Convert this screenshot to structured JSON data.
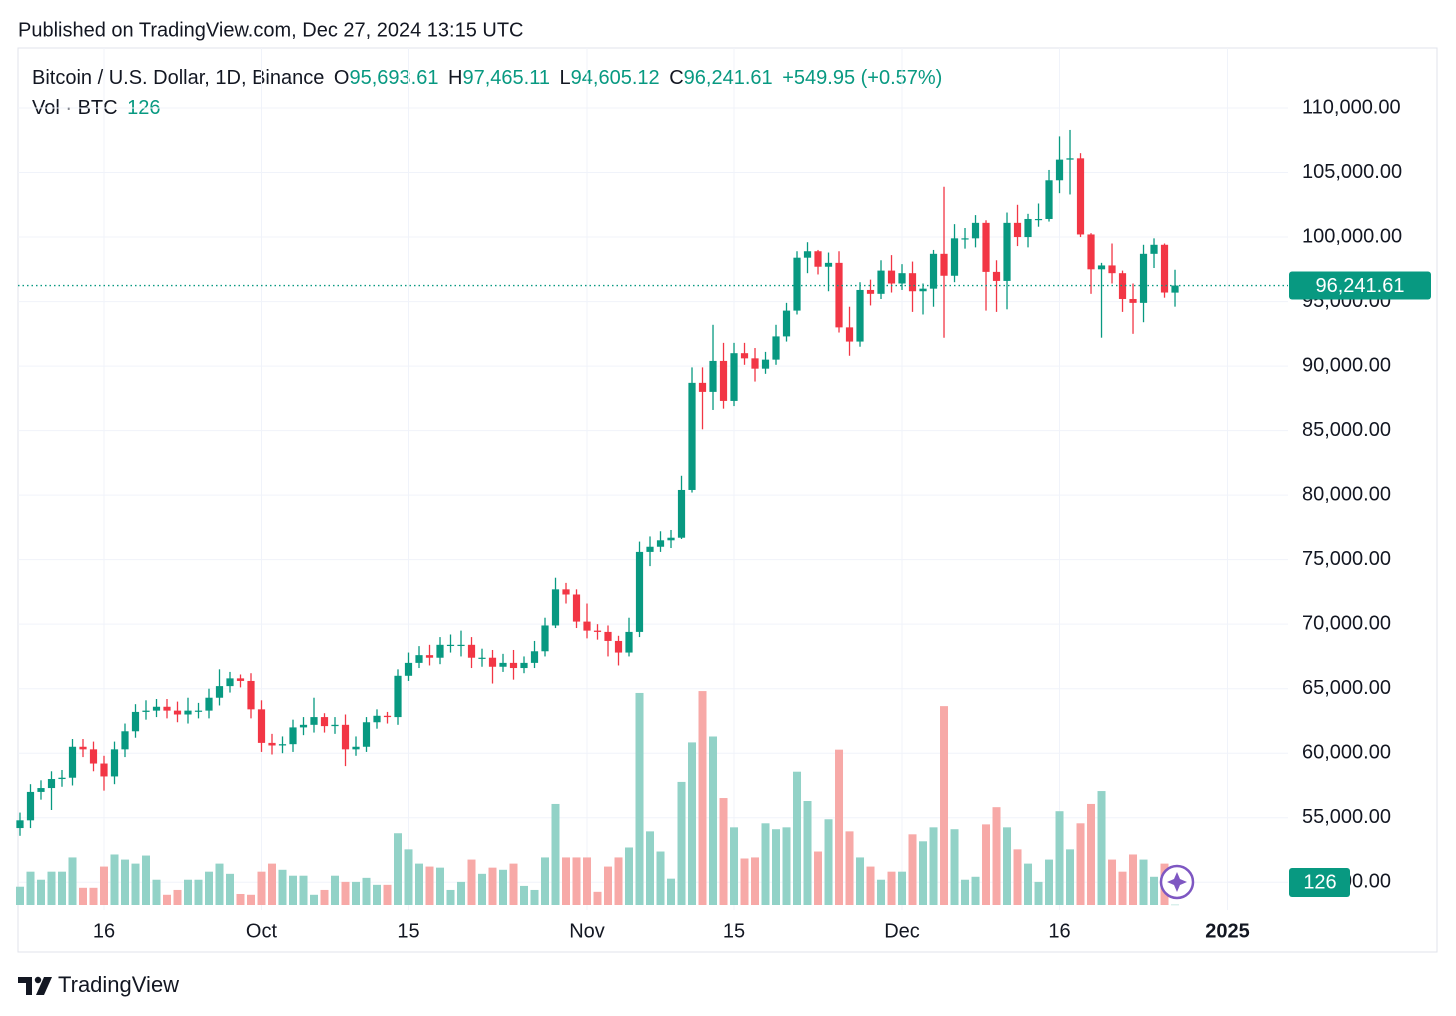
{
  "chart_data": {
    "type": "candlestick",
    "published": "Published on TradingView.com, Dec 27, 2024 13:15 UTC",
    "symbol": "Bitcoin / U.S. Dollar, 1D, Binance",
    "legend": [
      {
        "key": "O",
        "value": "95,693.61"
      },
      {
        "key": "H",
        "value": "97,465.11"
      },
      {
        "key": "L",
        "value": "94,605.12"
      },
      {
        "key": "C",
        "value": "96,241.61"
      }
    ],
    "change": "+549.95 (+0.57%)",
    "volume_label": "Vol · BTC",
    "last_price_label": "96,241.61",
    "footer": "TradingView",
    "up_color": "#089981",
    "down_color": "#f23645",
    "volume_up_color": "#92d2c7",
    "volume_down_color": "#f7a9a7",
    "grid": true,
    "xlim": [
      -0.19,
      120.76
    ],
    "xticks": [
      {
        "value": 8,
        "label": "16"
      },
      {
        "value": 23,
        "label": "Oct"
      },
      {
        "value": 37,
        "label": "15"
      },
      {
        "value": 54,
        "label": "Nov"
      },
      {
        "value": 68,
        "label": "15"
      },
      {
        "value": 84,
        "label": "Dec"
      },
      {
        "value": 99,
        "label": "16"
      },
      {
        "value": 115,
        "label": "2025"
      }
    ],
    "ylim": [
      47850,
      114650
    ],
    "yticks": [
      {
        "value": 50000,
        "label": "50,000.00"
      },
      {
        "value": 55000,
        "label": "55,000.00"
      },
      {
        "value": 60000,
        "label": "60,000.00"
      },
      {
        "value": 65000,
        "label": "65,000.00"
      },
      {
        "value": 70000,
        "label": "70,000.00"
      },
      {
        "value": 75000,
        "label": "75,000.00"
      },
      {
        "value": 80000,
        "label": "80,000.00"
      },
      {
        "value": 85000,
        "label": "85,000.00"
      },
      {
        "value": 90000,
        "label": "90,000.00"
      },
      {
        "value": 95000,
        "label": "95,000.00"
      },
      {
        "value": 100000,
        "label": "100,000.00"
      },
      {
        "value": 105000,
        "label": "105,000.00"
      },
      {
        "value": 110000,
        "label": "110,000.00"
      }
    ],
    "vlim": [
      0,
      80000
    ],
    "open": [
      54200,
      54800,
      57000,
      57300,
      58000,
      58100,
      60500,
      60300,
      59200,
      58200,
      60300,
      61700,
      63200,
      63300,
      63600,
      63300,
      63000,
      63300,
      63300,
      64300,
      65200,
      65800,
      65600,
      63400,
      60800,
      60600,
      60700,
      62000,
      62200,
      62800,
      62100,
      62200,
      60300,
      60500,
      62400,
      62900,
      62800,
      66000,
      67000,
      67600,
      67400,
      68400,
      68400,
      68400,
      67400,
      67400,
      66700,
      67000,
      66600,
      67000,
      67900,
      69900,
      72700,
      72300,
      70200,
      69500,
      69400,
      68700,
      67800,
      69400,
      75600,
      76000,
      76500,
      76700,
      80400,
      88700,
      88000,
      90400,
      87300,
      91000,
      90600,
      89800,
      90500,
      92300,
      94300,
      98400,
      98900,
      97700,
      98000,
      93000,
      91900,
      95900,
      95600,
      97400,
      96400,
      97200,
      95800,
      96000,
      98700,
      97000,
      99900,
      99900,
      101100,
      97300,
      96600,
      101100,
      100000,
      101400,
      101400,
      104400,
      106000,
      106100,
      100200,
      97500,
      97800,
      97200,
      95200,
      94900,
      98700,
      99400,
      95693.61
    ],
    "high": [
      55400,
      57600,
      57900,
      58600,
      58700,
      61100,
      61100,
      60900,
      59800,
      60900,
      62300,
      63800,
      64100,
      64200,
      64200,
      64000,
      64300,
      63900,
      65000,
      66500,
      66300,
      66100,
      66200,
      64100,
      61500,
      61300,
      62600,
      62800,
      64300,
      63100,
      62800,
      63000,
      61300,
      62800,
      63400,
      63200,
      66500,
      67800,
      68300,
      68400,
      69000,
      69200,
      69500,
      69000,
      68100,
      68000,
      67700,
      68000,
      67500,
      68700,
      70500,
      73600,
      73200,
      72700,
      71600,
      70000,
      69900,
      69100,
      70500,
      76400,
      76800,
      77200,
      77300,
      81500,
      89900,
      89900,
      93200,
      91800,
      91800,
      91800,
      91400,
      91100,
      93200,
      94900,
      98900,
      99600,
      99000,
      98800,
      98900,
      94600,
      96500,
      96700,
      98200,
      98600,
      97900,
      98100,
      96400,
      99000,
      103900,
      101000,
      100700,
      101700,
      101300,
      98200,
      101900,
      102500,
      101800,
      102600,
      105200,
      107800,
      108300,
      106500,
      100300,
      98000,
      99500,
      97400,
      96400,
      99400,
      99900,
      99500,
      97465.11
    ],
    "low": [
      53600,
      54200,
      56400,
      55600,
      57400,
      57500,
      59700,
      58600,
      57100,
      57600,
      59700,
      61200,
      62600,
      62800,
      62700,
      62400,
      62300,
      62700,
      62700,
      63700,
      64700,
      65100,
      62700,
      60100,
      59900,
      60000,
      60100,
      61400,
      61600,
      61600,
      61500,
      59000,
      59800,
      60100,
      61900,
      62300,
      62200,
      65600,
      66600,
      66800,
      66900,
      67800,
      67500,
      66600,
      66700,
      65400,
      66300,
      65700,
      66200,
      66600,
      67500,
      69700,
      71600,
      69700,
      68900,
      68800,
      67500,
      66800,
      67500,
      69000,
      74500,
      75600,
      75900,
      76600,
      80200,
      85100,
      86600,
      86700,
      86900,
      90100,
      88800,
      89400,
      90100,
      91900,
      94000,
      97200,
      97100,
      95800,
      92600,
      90800,
      91500,
      94700,
      95200,
      95700,
      95900,
      94200,
      94000,
      94600,
      92200,
      96500,
      99100,
      99200,
      94300,
      94200,
      94400,
      99300,
      99200,
      100800,
      101200,
      103400,
      103300,
      100000,
      95600,
      92200,
      96400,
      94200,
      92500,
      93400,
      97600,
      95300,
      94605.12
    ],
    "close": [
      54800,
      57000,
      57300,
      58000,
      58100,
      60500,
      60300,
      59200,
      58200,
      60300,
      61700,
      63200,
      63300,
      63600,
      63300,
      63000,
      63300,
      63300,
      64300,
      65200,
      65800,
      65600,
      63400,
      60800,
      60600,
      60700,
      62000,
      62200,
      62800,
      62100,
      62200,
      60300,
      60500,
      62400,
      62900,
      62800,
      66000,
      67000,
      67600,
      67400,
      68400,
      68400,
      68400,
      67400,
      67400,
      66700,
      67000,
      66600,
      67000,
      67900,
      69900,
      72700,
      72300,
      70200,
      69500,
      69400,
      68700,
      67800,
      69400,
      75600,
      76000,
      76500,
      76700,
      80400,
      88700,
      88000,
      90400,
      87300,
      91000,
      90600,
      89800,
      90500,
      92300,
      94300,
      98400,
      98900,
      97700,
      98000,
      93000,
      91900,
      95900,
      95600,
      97400,
      96400,
      97200,
      95800,
      96000,
      98700,
      97000,
      99900,
      99900,
      101100,
      97300,
      96600,
      101100,
      100000,
      101400,
      101400,
      104400,
      106000,
      106100,
      100200,
      97500,
      97800,
      97200,
      95200,
      94900,
      98700,
      99400,
      95700,
      96241.61
    ],
    "volume": [
      6800,
      12400,
      9400,
      12400,
      12400,
      17700,
      6400,
      6400,
      14300,
      18800,
      16900,
      15400,
      18400,
      9400,
      3800,
      5600,
      9400,
      9400,
      12400,
      15400,
      11600,
      4100,
      3800,
      12400,
      15400,
      13100,
      10900,
      10900,
      3800,
      5600,
      10900,
      8600,
      8600,
      10100,
      7500,
      7500,
      26700,
      20700,
      15400,
      14300,
      13900,
      5600,
      8600,
      16900,
      11600,
      13900,
      13100,
      15400,
      7100,
      5600,
      17700,
      37600,
      17700,
      17700,
      17700,
      4900,
      14300,
      17700,
      21400,
      78900,
      27400,
      19900,
      9800,
      45800,
      60500,
      79600,
      62700,
      39800,
      28900,
      17300,
      17700,
      30400,
      28200,
      28900,
      49600,
      38700,
      19900,
      31900,
      57800,
      27400,
      17700,
      14300,
      9400,
      12400,
      12400,
      26300,
      23700,
      28900,
      74000,
      28200,
      9400,
      10500,
      30000,
      36400,
      28900,
      20700,
      15400,
      8600,
      16900,
      34900,
      20700,
      30400,
      37600,
      42400,
      16900,
      12400,
      18800,
      16900,
      10500,
      15400,
      126
    ]
  }
}
